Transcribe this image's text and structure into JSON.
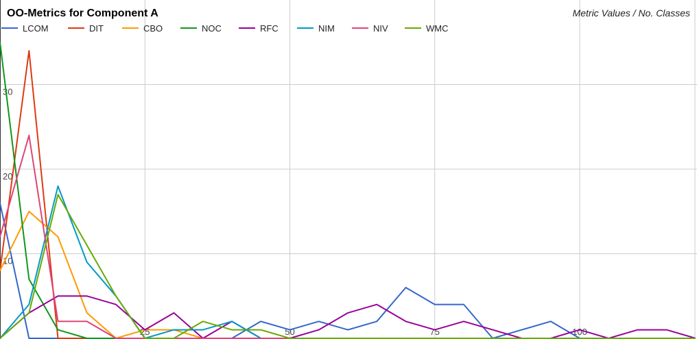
{
  "chart_data": {
    "type": "line",
    "title": "OO-Metrics for Component A",
    "subtitle": "Metric Values / No. Classes",
    "xlabel": "",
    "ylabel": "",
    "xlim": [
      0,
      120
    ],
    "ylim": [
      0,
      40
    ],
    "x_ticks": [
      25,
      50,
      75,
      100
    ],
    "y_ticks": [
      10,
      20,
      30
    ],
    "grid": true,
    "legend_position": "top-left",
    "x": [
      0,
      5,
      10,
      15,
      20,
      25,
      30,
      35,
      40,
      45,
      50,
      55,
      60,
      65,
      70,
      75,
      80,
      85,
      90,
      95,
      100,
      105,
      110,
      115,
      120
    ],
    "series": [
      {
        "name": "LCOM",
        "color": "#3366cc",
        "values": [
          16,
          0,
          0,
          0,
          0,
          0,
          0,
          0,
          0,
          2,
          1,
          2,
          1,
          2,
          6,
          4,
          4,
          0,
          1,
          2,
          0,
          0,
          0,
          0,
          0
        ]
      },
      {
        "name": "DIT",
        "color": "#dc3912",
        "values": [
          8,
          34,
          0,
          0,
          0,
          0,
          0,
          0,
          0,
          0,
          0,
          0,
          0,
          0,
          0,
          0,
          0,
          0,
          0,
          0,
          0,
          0,
          0,
          0,
          0
        ]
      },
      {
        "name": "CBO",
        "color": "#ff9900",
        "values": [
          8,
          15,
          12,
          3,
          0,
          1,
          1,
          0,
          0,
          0,
          0,
          0,
          0,
          0,
          0,
          0,
          0,
          0,
          0,
          0,
          0,
          0,
          0,
          0,
          0
        ]
      },
      {
        "name": "NOC",
        "color": "#109618",
        "values": [
          35,
          7,
          1,
          0,
          0,
          0,
          0,
          0,
          0,
          0,
          0,
          0,
          0,
          0,
          0,
          0,
          0,
          0,
          0,
          0,
          0,
          0,
          0,
          0,
          0
        ]
      },
      {
        "name": "RFC",
        "color": "#990099",
        "values": [
          0,
          3,
          5,
          5,
          4,
          1,
          3,
          0,
          2,
          0,
          0,
          1,
          3,
          4,
          2,
          1,
          2,
          1,
          0,
          0,
          1,
          0,
          1,
          1,
          0
        ]
      },
      {
        "name": "NIM",
        "color": "#0099c6",
        "values": [
          0,
          4,
          18,
          9,
          5,
          0,
          1,
          1,
          2,
          0,
          0,
          0,
          0,
          0,
          0,
          0,
          0,
          0,
          0,
          0,
          0,
          0,
          0,
          0,
          0
        ]
      },
      {
        "name": "NIV",
        "color": "#dd4477",
        "values": [
          12,
          24,
          2,
          2,
          0,
          0,
          0,
          0,
          0,
          0,
          0,
          0,
          0,
          0,
          0,
          0,
          0,
          0,
          0,
          0,
          0,
          0,
          0,
          0,
          0
        ]
      },
      {
        "name": "WMC",
        "color": "#66aa00",
        "values": [
          0,
          3,
          17,
          11,
          5,
          0,
          0,
          2,
          1,
          1,
          0,
          0,
          0,
          0,
          0,
          0,
          0,
          0,
          0,
          0,
          0,
          0,
          0,
          0,
          0
        ]
      }
    ]
  }
}
